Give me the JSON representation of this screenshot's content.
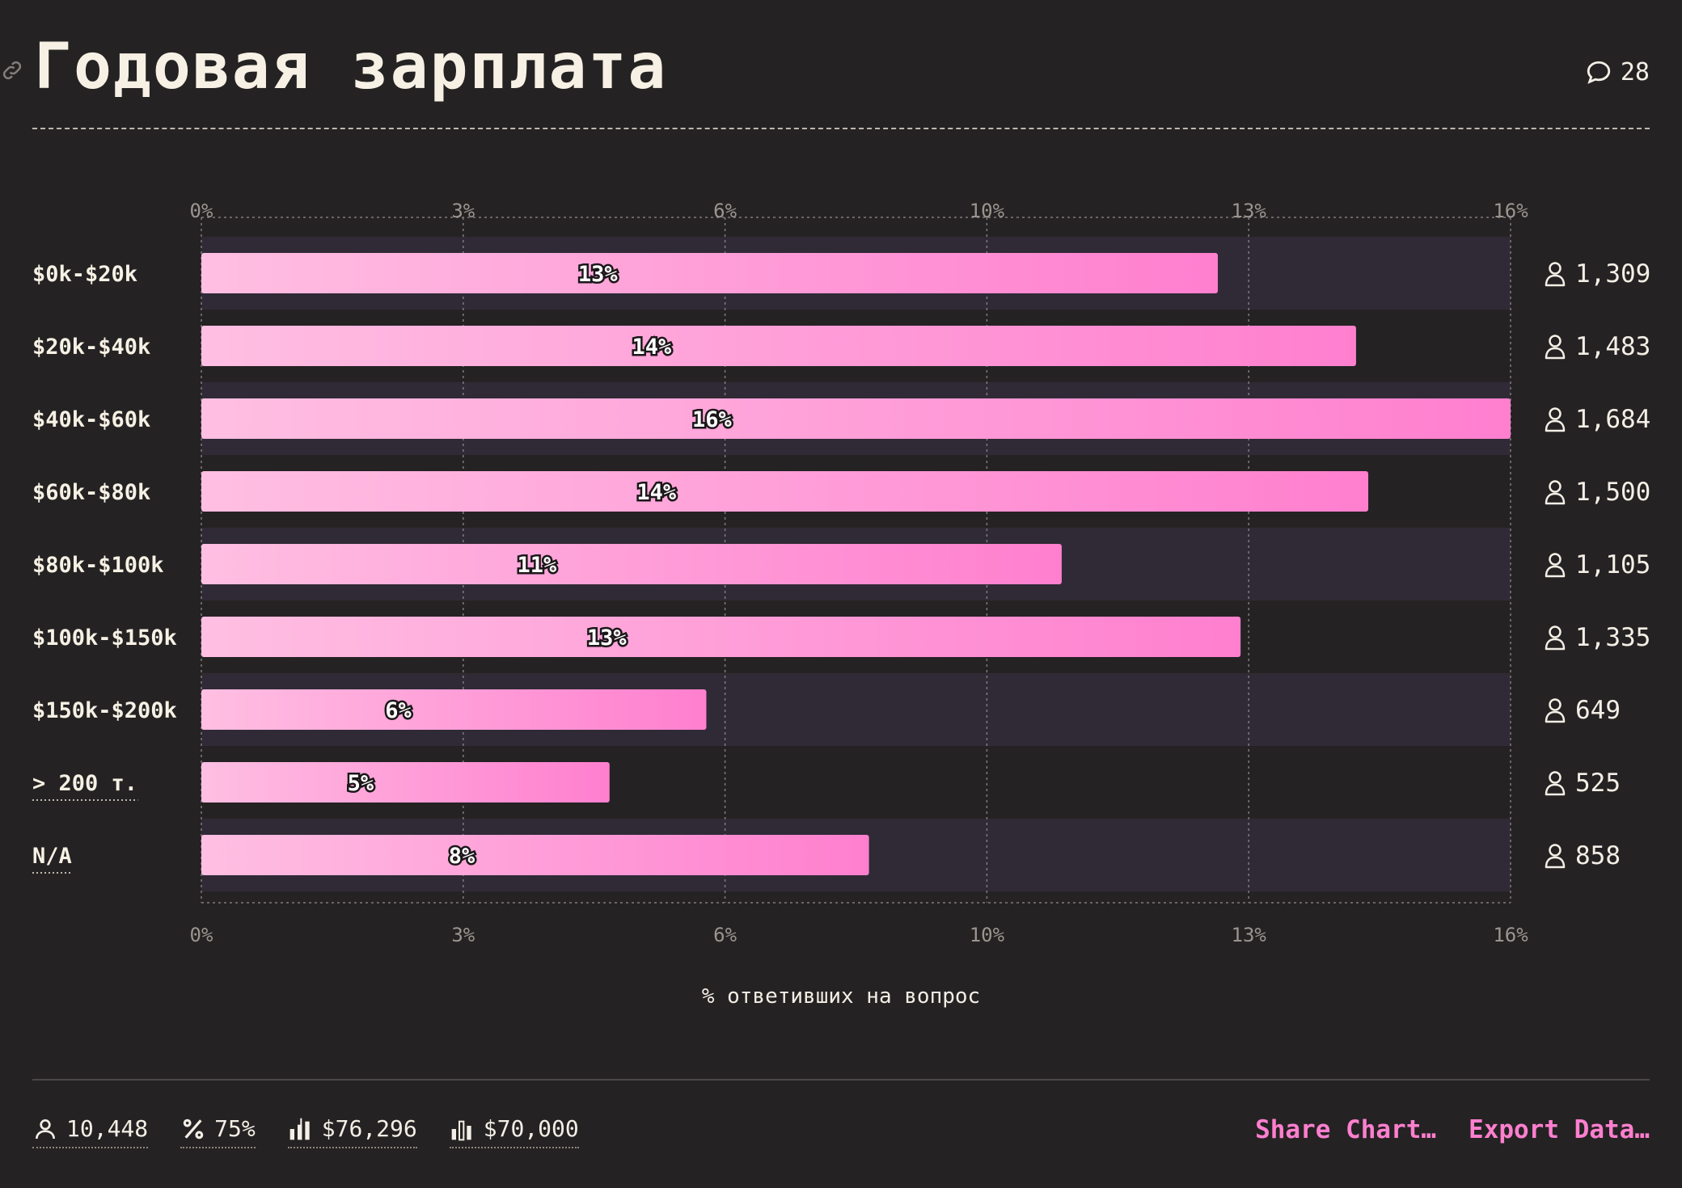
{
  "header": {
    "title": "Годовая зарплата",
    "comment_count": "28"
  },
  "colors": {
    "bar_start": "#ffbfe2",
    "bar_end": "#ff7fcf",
    "band": "#302a36",
    "background": "#252223",
    "accent": "#ff7fcf"
  },
  "chart_data": {
    "type": "bar",
    "orientation": "horizontal",
    "categories": [
      "$0k-$20k",
      "$20k-$40k",
      "$40k-$60k",
      "$60k-$80k",
      "$80k-$100k",
      "$100k-$150k",
      "$150k-$200k",
      "> 200 т.",
      "N/A"
    ],
    "values": [
      12.5,
      14.2,
      16.1,
      14.35,
      10.58,
      12.78,
      6.21,
      5.02,
      8.21
    ],
    "value_labels": [
      "13%",
      "14%",
      "16%",
      "14%",
      "11%",
      "13%",
      "6%",
      "5%",
      "8%"
    ],
    "counts": [
      "1,309",
      "1,483",
      "1,684",
      "1,500",
      "1,105",
      "1,335",
      "649",
      "525",
      "858"
    ],
    "underlined_categories": [
      "> 200 т.",
      "N/A"
    ],
    "xlim": [
      0,
      16.1
    ],
    "ticks": [
      0,
      3.22,
      6.44,
      9.66,
      12.88,
      16.1
    ],
    "tick_labels": [
      "0%",
      "3%",
      "6%",
      "10%",
      "13%",
      "16%"
    ],
    "xlabel": "% ответивших на вопрос",
    "grid": true
  },
  "footer": {
    "stats": [
      {
        "icon": "user-icon",
        "value": "10,448"
      },
      {
        "icon": "percent-icon",
        "value": "75%"
      },
      {
        "icon": "mean-icon",
        "value": "$76,296"
      },
      {
        "icon": "median-icon",
        "value": "$70,000"
      }
    ],
    "share_label": "Share Chart…",
    "export_label": "Export Data…"
  }
}
